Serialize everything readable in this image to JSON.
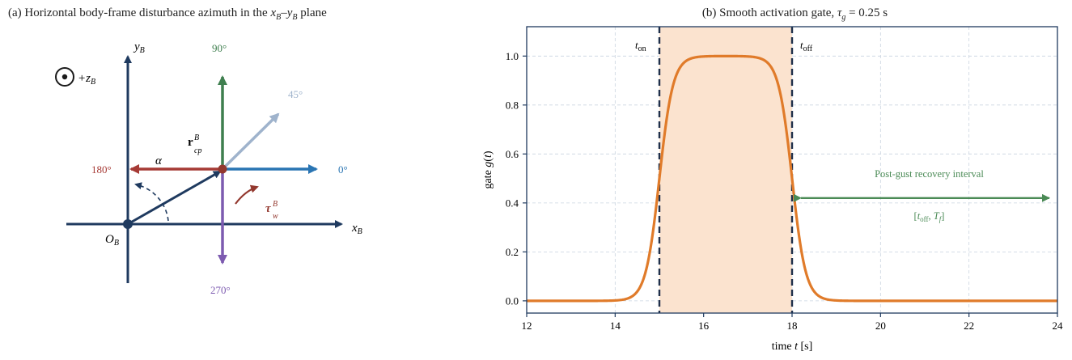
{
  "panel_a": {
    "title": "(a) Horizontal body-frame disturbance azimuth in the x_B–y_B plane",
    "title_main": "(a) Horizontal body-frame disturbance azimuth in the ",
    "title_xb": "x",
    "title_sub_b1": "B",
    "title_dash": "–",
    "title_yb": "y",
    "title_sub_b2": "B",
    "title_tail": " plane",
    "axis_y": "y",
    "axis_y_sub": "B",
    "axis_x": "x",
    "axis_x_sub": "B",
    "z_label": "+z",
    "z_sub": "B",
    "origin": "O",
    "origin_sub": "B",
    "angle_90": "90°",
    "angle_45": "45°",
    "angle_0": "0°",
    "angle_180": "180°",
    "angle_270": "270°",
    "alpha": "α",
    "r_label": "r",
    "r_sup": "B",
    "r_sub": "cp",
    "tau_label": "τ",
    "tau_sup": "B",
    "tau_sub": "w",
    "colors": {
      "navy": "#1f3a5f",
      "green": "#3f7f4f",
      "lightblue": "#9fb3cc",
      "blue": "#2a75b3",
      "red": "#a63a35",
      "purple": "#7d5bb0",
      "torque": "#93382e"
    }
  },
  "panel_b": {
    "title_prefix": "(b) Smooth activation gate, ",
    "title_tau": "τ",
    "title_tau_sub": "g",
    "title_suffix": " = 0.25 s",
    "chart_data": {
      "type": "line",
      "title": "(b) Smooth activation gate, τg = 0.25 s",
      "xlabel": "time t [s]",
      "ylabel": "gate g(t)",
      "xlim": [
        12,
        24
      ],
      "ylim": [
        -0.05,
        1.12
      ],
      "xticks": [
        "12",
        "14",
        "16",
        "18",
        "20",
        "22",
        "24"
      ],
      "yticks": [
        "0.0",
        "0.2",
        "0.4",
        "0.6",
        "0.8",
        "1.0"
      ],
      "grid": true,
      "t_on": 15,
      "t_off": 18,
      "tau_g": 0.25,
      "series": [
        {
          "color": "#e07b2a",
          "x": [
            12,
            14,
            14.25,
            14.5,
            14.75,
            15,
            15.25,
            15.5,
            15.75,
            16,
            17,
            17.25,
            17.5,
            17.75,
            18,
            18.25,
            18.5,
            18.75,
            19,
            24
          ],
          "y": [
            0.0,
            0.0,
            0.02,
            0.12,
            0.27,
            0.5,
            0.73,
            0.88,
            0.98,
            1.0,
            1.0,
            0.98,
            0.88,
            0.73,
            0.5,
            0.27,
            0.12,
            0.02,
            0.0,
            0.0
          ]
        }
      ],
      "annotations": {
        "t_on_label": "t",
        "t_on_sub": "on",
        "t_off_label": "t",
        "t_off_sub": "off",
        "recovery_text": "Post-gust recovery interval",
        "recovery_range_open": "[",
        "recovery_range_t": "t",
        "recovery_range_off": "off",
        "recovery_range_sep": ", ",
        "recovery_range_T": "T",
        "recovery_range_f": "f",
        "recovery_range_close": "]",
        "recovery_start": 18.2,
        "recovery_end": 24,
        "recovery_y": 0.42
      },
      "colors": {
        "line": "#e07b2a",
        "shade": "#fbe3cf",
        "vline": "#1f2f4a",
        "recovery": "#4a8a55",
        "grid": "#c9d4e0",
        "frame": "#1f3a5f"
      }
    }
  }
}
